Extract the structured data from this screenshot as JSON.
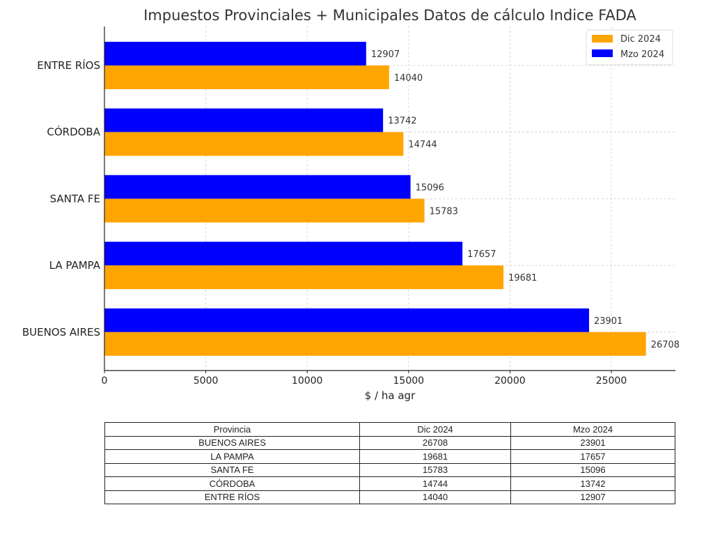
{
  "chart_data": {
    "type": "bar",
    "orientation": "horizontal",
    "title": "Impuestos Provinciales + Municipales Datos de cálculo Indice FADA",
    "xlabel": "$ / ha agr",
    "ylabel": "",
    "categories": [
      "ENTRE RÍOS",
      "CÓRDOBA",
      "SANTA FE",
      "LA PAMPA",
      "BUENOS AIRES"
    ],
    "series": [
      {
        "name": "Mzo 2024",
        "color": "#0000ff",
        "values": [
          12907,
          13742,
          15096,
          17657,
          23901
        ]
      },
      {
        "name": "Dic 2024",
        "color": "#ffa500",
        "values": [
          14040,
          14744,
          15783,
          19681,
          26708
        ]
      }
    ],
    "xlim": [
      0,
      28160
    ],
    "xticks": [
      0,
      5000,
      10000,
      15000,
      20000,
      25000
    ],
    "grid": true,
    "legend": {
      "position": "top-right",
      "entries": [
        "Dic 2024",
        "Mzo 2024"
      ]
    },
    "data_labels": true
  },
  "table": {
    "headers": [
      "Provincia",
      "Dic 2024",
      "Mzo 2024"
    ],
    "rows": [
      [
        "BUENOS AIRES",
        "26708",
        "23901"
      ],
      [
        "LA PAMPA",
        "19681",
        "17657"
      ],
      [
        "SANTA FE",
        "15783",
        "15096"
      ],
      [
        "CÓRDOBA",
        "14744",
        "13742"
      ],
      [
        "ENTRE RÍOS",
        "14040",
        "12907"
      ]
    ]
  }
}
